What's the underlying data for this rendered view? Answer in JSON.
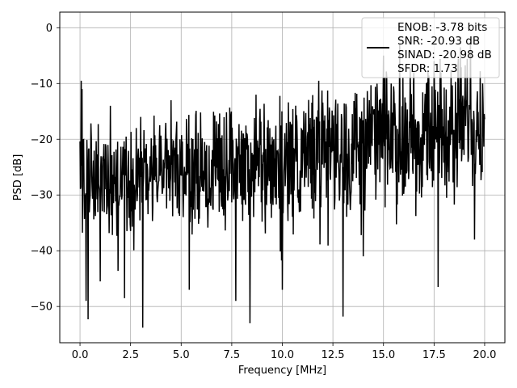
{
  "chart_data": {
    "type": "line",
    "xlabel": "Frequency [MHz]",
    "ylabel": "PSD [dB]",
    "xlim": [
      -1.0,
      21.0
    ],
    "ylim": [
      -56.5,
      2.8
    ],
    "xticks": [
      0.0,
      2.5,
      5.0,
      7.5,
      10.0,
      12.5,
      15.0,
      17.5,
      20.0
    ],
    "xtick_labels": [
      "0.0",
      "2.5",
      "5.0",
      "7.5",
      "10.0",
      "12.5",
      "15.0",
      "17.5",
      "20.0"
    ],
    "yticks": [
      0,
      -10,
      -20,
      -30,
      -40,
      -50
    ],
    "ytick_labels": [
      "0",
      "−10",
      "−20",
      "−30",
      "−40",
      "−50"
    ],
    "grid": true,
    "legend_position": "upper-right",
    "legend_lines": [
      "ENOB: -3.78 bits",
      "SNR: -20.93 dB",
      "SINAD: -20.98 dB",
      "SFDR: 1.73"
    ],
    "line_color": "#000000",
    "series": [
      {
        "x_start": 0.0,
        "x_end": 20.0,
        "samples_per_mhz": 50,
        "trend": [
          [
            0.0,
            -27.5
          ],
          [
            5.0,
            -26.0
          ],
          [
            10.0,
            -23.5
          ],
          [
            15.0,
            -20.0
          ],
          [
            20.0,
            -16.0
          ]
        ],
        "spread": [
          [
            0.0,
            8.0
          ],
          [
            10.0,
            9.0
          ],
          [
            20.0,
            10.0
          ]
        ],
        "peaks": [
          [
            0.05,
            -9.5
          ],
          [
            0.1,
            -11.0
          ],
          [
            1.5,
            -14.0
          ],
          [
            3.0,
            -16.0
          ],
          [
            4.5,
            -13.0
          ],
          [
            8.7,
            -12.0
          ],
          [
            11.8,
            -9.5
          ],
          [
            15.0,
            -5.0
          ],
          [
            15.8,
            -3.0
          ],
          [
            16.5,
            -8.0
          ],
          [
            17.5,
            -6.0
          ],
          [
            18.8,
            -3.5
          ],
          [
            19.3,
            -1.5
          ],
          [
            19.9,
            -10.0
          ]
        ],
        "dips": [
          [
            0.3,
            -49.0
          ],
          [
            0.4,
            -52.3
          ],
          [
            1.0,
            -45.5
          ],
          [
            2.2,
            -48.5
          ],
          [
            3.1,
            -53.8
          ],
          [
            5.4,
            -47.0
          ],
          [
            7.7,
            -49.0
          ],
          [
            8.4,
            -53.0
          ],
          [
            10.0,
            -47.0
          ],
          [
            13.0,
            -51.8
          ],
          [
            14.0,
            -41.0
          ],
          [
            17.7,
            -46.5
          ],
          [
            19.5,
            -38.0
          ]
        ]
      }
    ]
  }
}
